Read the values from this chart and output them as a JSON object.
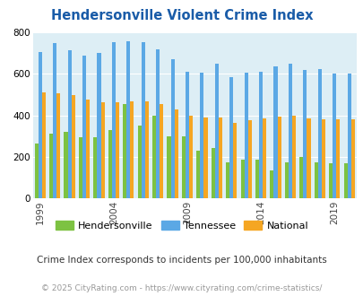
{
  "title": "Hendersonville Violent Crime Index",
  "subtitle": "Crime Index corresponds to incidents per 100,000 inhabitants",
  "footer": "© 2025 CityRating.com - https://www.cityrating.com/crime-statistics/",
  "years": [
    1999,
    2000,
    2001,
    2002,
    2003,
    2004,
    2005,
    2006,
    2007,
    2008,
    2009,
    2010,
    2011,
    2012,
    2013,
    2014,
    2015,
    2016,
    2017,
    2018,
    2019,
    2020
  ],
  "hendersonville": [
    265,
    310,
    320,
    295,
    295,
    330,
    455,
    350,
    400,
    300,
    300,
    230,
    245,
    175,
    185,
    185,
    135,
    175,
    200,
    175,
    170,
    170
  ],
  "tennessee": [
    705,
    748,
    715,
    690,
    700,
    755,
    760,
    755,
    720,
    670,
    610,
    608,
    648,
    585,
    608,
    610,
    635,
    650,
    620,
    625,
    600,
    600
  ],
  "national": [
    510,
    508,
    500,
    475,
    465,
    465,
    470,
    470,
    455,
    430,
    400,
    390,
    390,
    365,
    375,
    385,
    395,
    400,
    385,
    380,
    380,
    380
  ],
  "hendersonville_color": "#7dc242",
  "tennessee_color": "#5ba8e5",
  "national_color": "#f5a623",
  "bg_color": "#ddeef5",
  "ylim": [
    0,
    800
  ],
  "yticks": [
    0,
    200,
    400,
    600,
    800
  ],
  "bar_width": 0.25,
  "title_color": "#1a5ca8",
  "subtitle_color": "#333333",
  "footer_color": "#999999",
  "tick_years": [
    1999,
    2004,
    2009,
    2014,
    2019
  ]
}
